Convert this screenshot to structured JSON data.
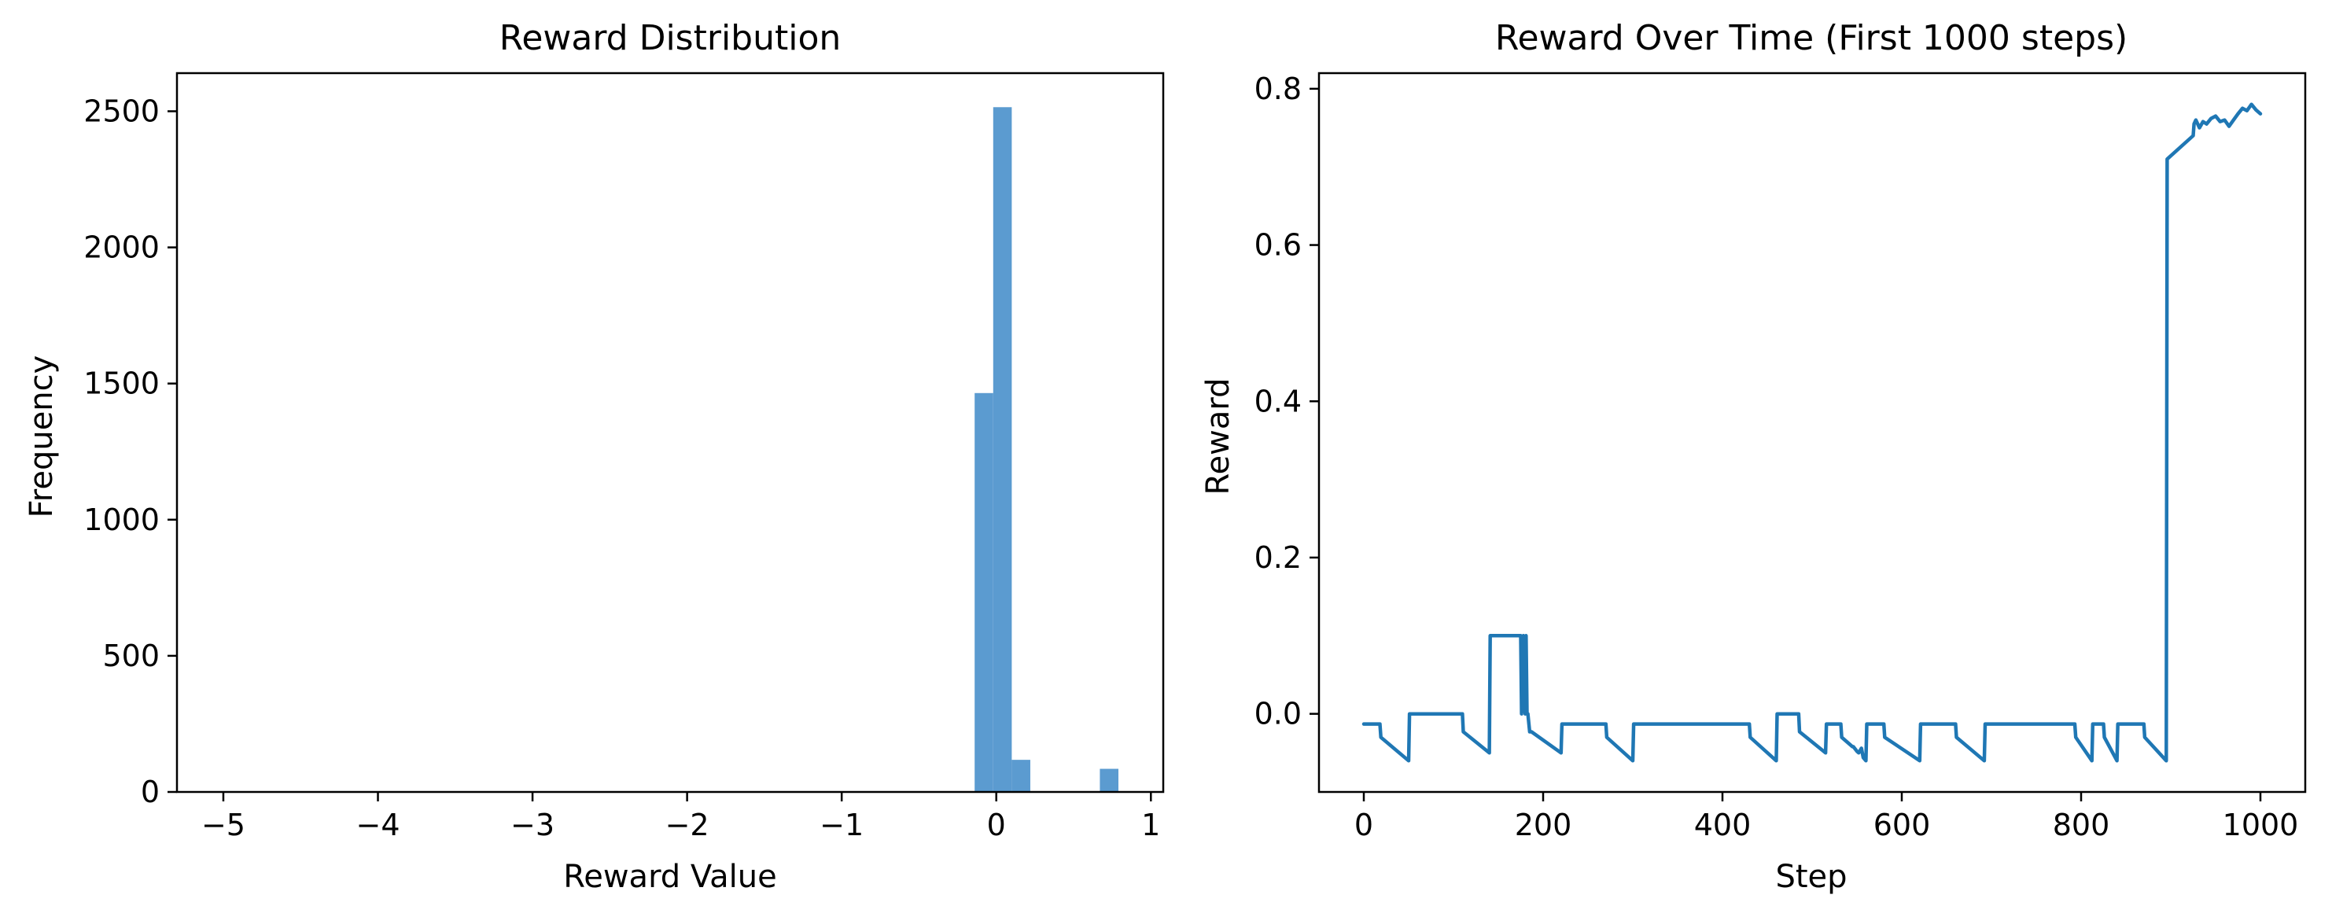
{
  "colors": {
    "hist": "#5b9bd0",
    "line": "#1f77b4",
    "axis": "#000000"
  },
  "chart_data": [
    {
      "type": "bar",
      "title": "Reward Distribution",
      "xlabel": "Reward Value",
      "ylabel": "Frequency",
      "xlim": [
        -5.3,
        1.08
      ],
      "ylim": [
        0,
        2640
      ],
      "xticks": [
        -5,
        -4,
        -3,
        -2,
        -1,
        0,
        1
      ],
      "xtick_labels": [
        "−5",
        "−4",
        "−3",
        "−2",
        "−1",
        "0",
        "1"
      ],
      "yticks": [
        0,
        500,
        1000,
        1500,
        2000,
        2500
      ],
      "ytick_labels": [
        "0",
        "500",
        "1000",
        "1500",
        "2000",
        "2500"
      ],
      "bin_width": 0.12,
      "bins": [
        {
          "x0": -5.02,
          "value": 3
        },
        {
          "x0": -4.3,
          "value": 3
        },
        {
          "x0": -0.14,
          "value": 1465
        },
        {
          "x0": -0.02,
          "value": 2515
        },
        {
          "x0": 0.1,
          "value": 118
        },
        {
          "x0": 0.67,
          "value": 85
        }
      ]
    },
    {
      "type": "line",
      "title": "Reward Over Time (First 1000 steps)",
      "xlabel": "Step",
      "ylabel": "Reward",
      "xlim": [
        -50,
        1050
      ],
      "ylim": [
        -0.1,
        0.82
      ],
      "xticks": [
        0,
        200,
        400,
        600,
        800,
        1000
      ],
      "xtick_labels": [
        "0",
        "200",
        "400",
        "600",
        "800",
        "1000"
      ],
      "yticks": [
        0.0,
        0.2,
        0.4,
        0.6,
        0.8
      ],
      "ytick_labels": [
        "0.0",
        "0.2",
        "0.4",
        "0.6",
        "0.8"
      ],
      "x": [
        0,
        18,
        19,
        50,
        51,
        110,
        111,
        140,
        141,
        175,
        176,
        178,
        180,
        181,
        182,
        183,
        185,
        187,
        220,
        221,
        270,
        271,
        300,
        301,
        430,
        431,
        460,
        461,
        485,
        486,
        515,
        516,
        532,
        533,
        545,
        546,
        550,
        552,
        555,
        557,
        560,
        561,
        580,
        581,
        620,
        621,
        660,
        661,
        692,
        693,
        793,
        794,
        812,
        813,
        825,
        826,
        840,
        841,
        870,
        871,
        895,
        896,
        925,
        926,
        928,
        932,
        936,
        940,
        945,
        950,
        955,
        960,
        965,
        970,
        975,
        980,
        985,
        990,
        995,
        1000
      ],
      "y": [
        -0.013,
        -0.013,
        -0.03,
        -0.06,
        0.0,
        0.0,
        -0.023,
        -0.05,
        0.1,
        0.1,
        0.0,
        0.1,
        0.0,
        0.1,
        0.0,
        0.0,
        -0.023,
        -0.023,
        -0.05,
        -0.013,
        -0.013,
        -0.03,
        -0.06,
        -0.013,
        -0.013,
        -0.03,
        -0.06,
        0.0,
        0.0,
        -0.023,
        -0.05,
        -0.013,
        -0.013,
        -0.03,
        -0.042,
        -0.042,
        -0.048,
        -0.05,
        -0.044,
        -0.056,
        -0.06,
        -0.013,
        -0.013,
        -0.03,
        -0.06,
        -0.013,
        -0.013,
        -0.03,
        -0.06,
        -0.013,
        -0.013,
        -0.03,
        -0.06,
        -0.013,
        -0.013,
        -0.03,
        -0.06,
        -0.013,
        -0.013,
        -0.03,
        -0.06,
        0.71,
        0.74,
        0.755,
        0.76,
        0.75,
        0.758,
        0.755,
        0.762,
        0.765,
        0.758,
        0.76,
        0.752,
        0.76,
        0.768,
        0.775,
        0.772,
        0.78,
        0.773,
        0.768
      ]
    }
  ]
}
